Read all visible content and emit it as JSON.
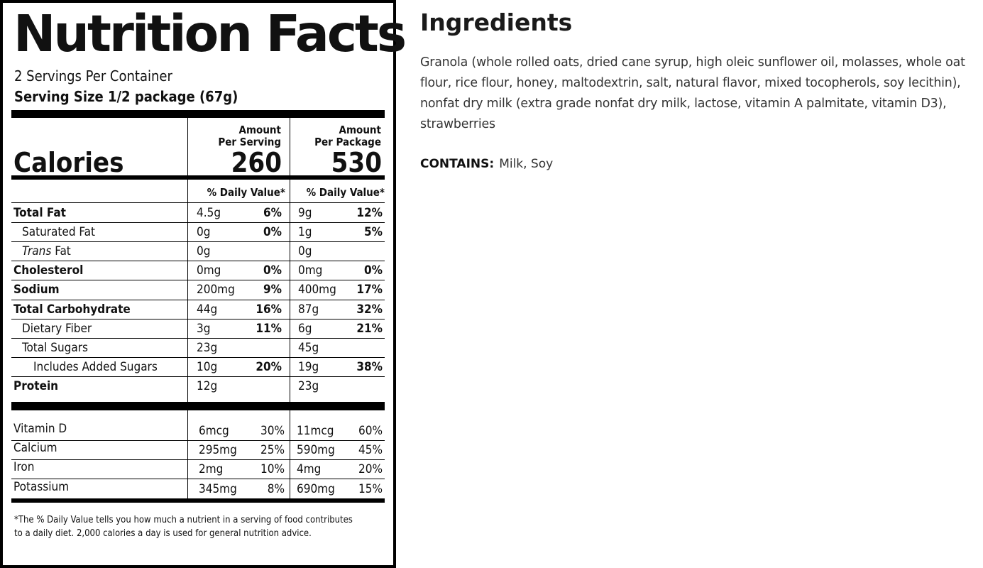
{
  "label": {
    "title": "Nutrition Facts",
    "servings_per_container": "2 Servings Per Container",
    "serving_size": "Serving Size 1/2 package (67g)",
    "calories_label": "Calories",
    "per_serving_head": [
      "Amount",
      "Per Serving"
    ],
    "per_package_head": [
      "Amount",
      "Per Package"
    ],
    "calories_per_serving": "260",
    "calories_per_package": "530",
    "dv_header": "% Daily Value*",
    "nutrients": [
      {
        "name": "Total Fat",
        "bold": true,
        "indent": 0,
        "s_amt": "4.5g",
        "s_dv": "6%",
        "p_amt": "9g",
        "p_dv": "12%"
      },
      {
        "name": "Saturated Fat",
        "bold": false,
        "indent": 1,
        "s_amt": "0g",
        "s_dv": "0%",
        "p_amt": "1g",
        "p_dv": "5%"
      },
      {
        "name_italic": "Trans",
        "name": " Fat",
        "bold": false,
        "indent": 1,
        "s_amt": "0g",
        "s_dv": "",
        "p_amt": "0g",
        "p_dv": ""
      },
      {
        "name": "Cholesterol",
        "bold": true,
        "indent": 0,
        "s_amt": "0mg",
        "s_dv": "0%",
        "p_amt": "0mg",
        "p_dv": "0%"
      },
      {
        "name": "Sodium",
        "bold": true,
        "indent": 0,
        "s_amt": "200mg",
        "s_dv": "9%",
        "p_amt": "400mg",
        "p_dv": "17%"
      },
      {
        "name": "Total Carbohydrate",
        "bold": true,
        "indent": 0,
        "s_amt": "44g",
        "s_dv": "16%",
        "p_amt": "87g",
        "p_dv": "32%"
      },
      {
        "name": "Dietary Fiber",
        "bold": false,
        "indent": 1,
        "s_amt": "3g",
        "s_dv": "11%",
        "p_amt": "6g",
        "p_dv": "21%"
      },
      {
        "name": "Total Sugars",
        "bold": false,
        "indent": 1,
        "s_amt": "23g",
        "s_dv": "",
        "p_amt": "45g",
        "p_dv": ""
      },
      {
        "name": "Includes Added Sugars",
        "bold": false,
        "indent": 2,
        "s_amt": "10g",
        "s_dv": "20%",
        "p_amt": "19g",
        "p_dv": "38%"
      },
      {
        "name": "Protein",
        "bold": true,
        "indent": 0,
        "s_amt": "12g",
        "s_dv": "",
        "p_amt": "23g",
        "p_dv": ""
      }
    ],
    "vitamins": [
      {
        "name": "Vitamin D",
        "s_amt": "6mcg",
        "s_dv": "30%",
        "p_amt": "11mcg",
        "p_dv": "60%"
      },
      {
        "name": "Calcium",
        "s_amt": "295mg",
        "s_dv": "25%",
        "p_amt": "590mg",
        "p_dv": "45%"
      },
      {
        "name": "Iron",
        "s_amt": "2mg",
        "s_dv": "10%",
        "p_amt": "4mg",
        "p_dv": "20%"
      },
      {
        "name": "Potassium",
        "s_amt": "345mg",
        "s_dv": "8%",
        "p_amt": "690mg",
        "p_dv": "15%"
      }
    ],
    "footnote": "*The % Daily Value tells you how much a nutrient in a  serving of food contributes to a daily diet. 2,000 calories  a day is used for general nutrition advice."
  },
  "ingredients": {
    "title": "Ingredients",
    "text": "Granola (whole rolled oats, dried cane syrup, high oleic sunflower oil, molasses, whole oat flour, rice flour, honey, maltodextrin, salt, natural flavor, mixed tocopherols, soy lecithin), nonfat dry milk (extra grade nonfat dry milk, lactose, vitamin A palmitate, vitamin D3), strawberries",
    "contains_label": "CONTAINS:",
    "contains_value": "Milk, Soy"
  }
}
